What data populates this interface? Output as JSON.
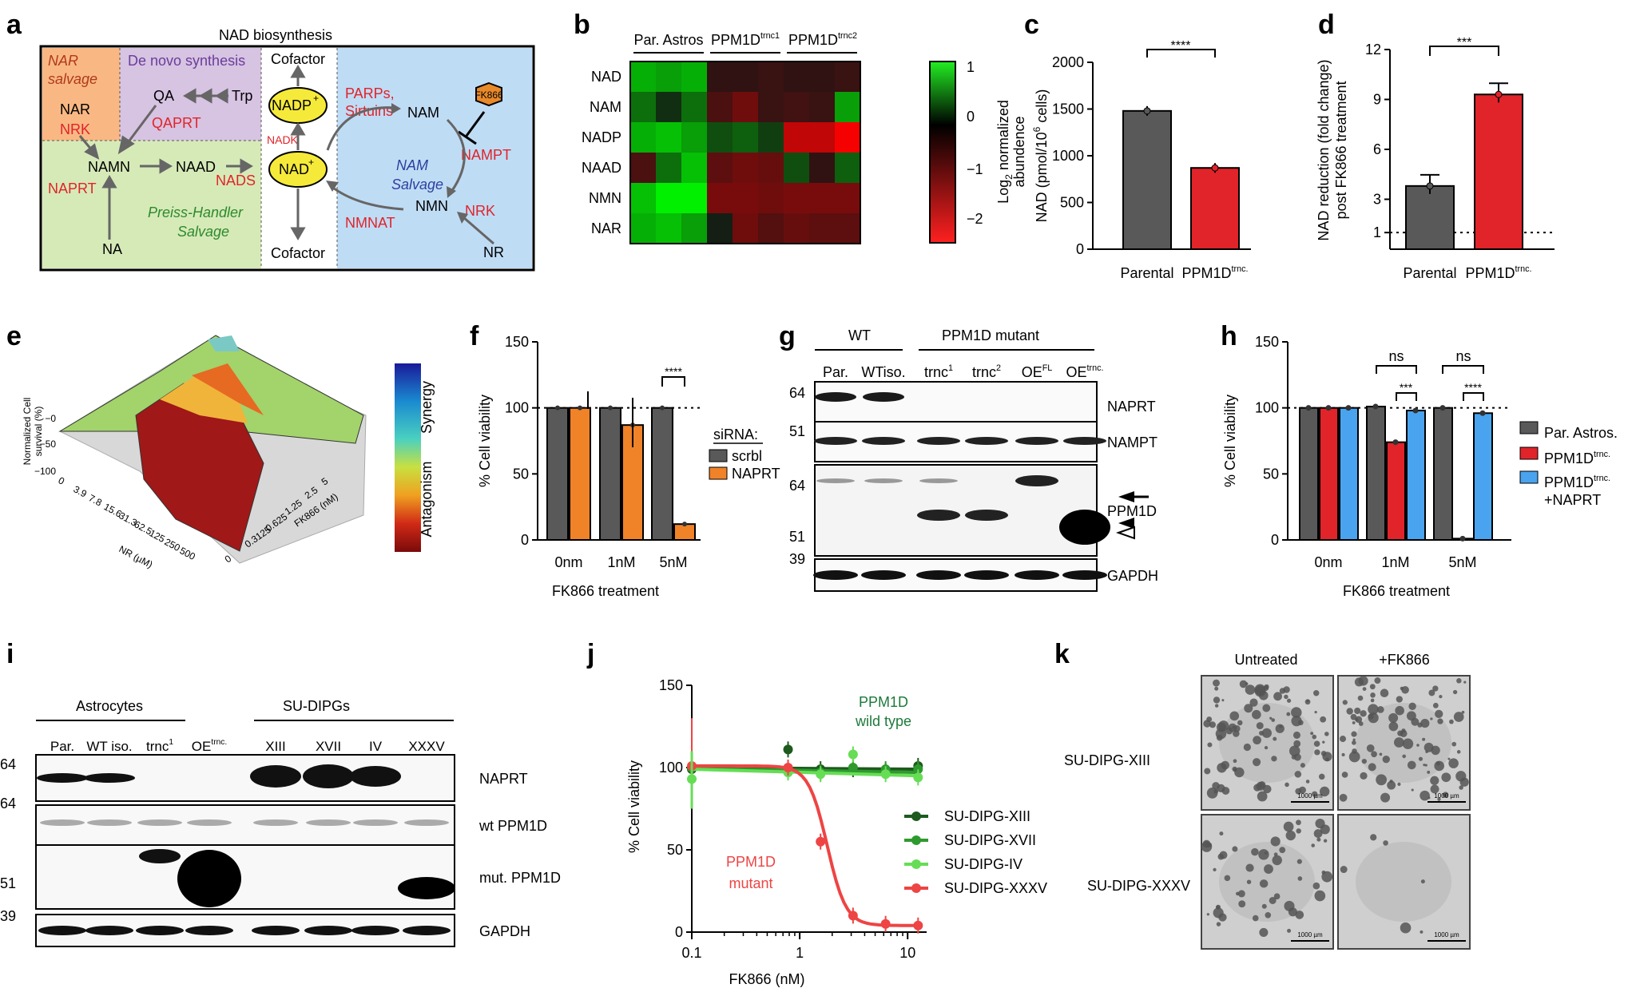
{
  "panels": {
    "a": {
      "label": "a",
      "title": "NAD biosynthesis",
      "nar_salvage": [
        "NAR",
        "salvage"
      ],
      "de_novo": "De novo synthesis",
      "nam_salvage": [
        "NAM",
        "Salvage"
      ],
      "preiss": [
        "Preiss-Handler",
        "Salvage"
      ],
      "nodes": {
        "nar": "NAR",
        "nrk1": "NRK",
        "qa": "QA",
        "trp": "Trp",
        "qaprt": "QAPRT",
        "namn": "NAMN",
        "naad": "NAAD",
        "nads": "NADS",
        "naprt": "NAPRT",
        "na": "NA",
        "nadp": "NADP",
        "nadp_sup": "+",
        "nad": "NAD",
        "nad_sup": "+",
        "nadk": "NADK",
        "cofactor_top": "Cofactor",
        "cofactor_bottom": "Cofactor",
        "parps": [
          "PARPs,",
          "Sirtuins"
        ],
        "nam": "NAM",
        "fk866": "FK866",
        "nampt": "NAMPT",
        "nmn": "NMN",
        "nrk2": "NRK",
        "nmnat": "NMNAT",
        "nr": "NR"
      }
    },
    "b": {
      "label": "b",
      "groups": [
        "Par. Astros",
        "PPM1D",
        "PPM1D"
      ],
      "group_sup": [
        "",
        "trnc1",
        "trnc2"
      ],
      "rows": [
        "NAD",
        "NAM",
        "NADP",
        "NAAD",
        "NMN",
        "NAR"
      ],
      "colorbar_ticks": [
        "1",
        "0",
        "−1",
        "−2"
      ],
      "colorbar_label_a": "Log",
      "colorbar_label_sub": "2",
      "colorbar_label_b": " normalized",
      "colorbar_label_c": "abundence",
      "cells": [
        [
          0.9,
          0.8,
          0.9,
          -0.2,
          -0.2,
          -0.3,
          -0.2,
          -0.2,
          -0.3
        ],
        [
          0.5,
          0.1,
          0.5,
          -0.5,
          -0.9,
          -0.3,
          -0.4,
          -0.3,
          0.8
        ],
        [
          0.9,
          1.0,
          0.8,
          0.3,
          0.4,
          0.2,
          -1.8,
          -1.8,
          -2.4
        ],
        [
          -0.5,
          0.5,
          1.0,
          -0.7,
          -0.9,
          -0.8,
          0.3,
          -0.2,
          0.4
        ],
        [
          1.0,
          1.3,
          1.6,
          -1.0,
          -1.0,
          -0.9,
          -1.0,
          -1.0,
          -1.0
        ],
        [
          0.9,
          1.0,
          0.8,
          0.0,
          -0.9,
          -0.6,
          -0.8,
          -0.7,
          -0.7
        ]
      ]
    },
    "c": {
      "label": "c",
      "ylabel_a": "NAD (pmol/10",
      "ylabel_sup": "6",
      "ylabel_b": " cells)",
      "yticks": [
        "0",
        "500",
        "1000",
        "1500",
        "2000"
      ],
      "categories": [
        "Parental",
        "PPM1D"
      ],
      "cat_sup": [
        "",
        "trnc."
      ],
      "values": [
        1480,
        870
      ],
      "sig": "****"
    },
    "d": {
      "label": "d",
      "ylabel_a": "NAD reduction (fold change)",
      "ylabel_b": "post FK866 treatment",
      "yticks": [
        "1",
        "3",
        "6",
        "9",
        "12"
      ],
      "categories": [
        "Parental",
        "PPM1D"
      ],
      "cat_sup": [
        "",
        "trnc."
      ],
      "values": [
        3.8,
        9.3
      ],
      "sig": "***"
    },
    "e": {
      "label": "e",
      "zlabel_a": "Normalized Cell",
      "zlabel_b": "survival (%)",
      "zticks": [
        "−0",
        "−50",
        "−100"
      ],
      "nr_ticks": [
        "0",
        "3.9",
        "7.8",
        "15.6",
        "31.3",
        "62.5",
        "125",
        "250",
        "500"
      ],
      "nr_label": "NR (µM)",
      "fk_ticks": [
        "0",
        "0.3125",
        "0.625",
        "1.25",
        "2.5",
        "5"
      ],
      "fk_label": "FK866 (nM)",
      "colorbar_top": "Synergy",
      "colorbar_bottom": "Antagonism"
    },
    "f": {
      "label": "f",
      "ylabel": "% Cell viability",
      "xlabel": "FK866 treatment",
      "yticks": [
        "0",
        "50",
        "100",
        "150"
      ],
      "groups": [
        "0nm",
        "1nM",
        "5nM"
      ],
      "legend_title": "siRNA:",
      "legend": [
        "scrbl",
        "NAPRT"
      ],
      "values_scrbl": [
        100,
        100,
        100
      ],
      "values_naprt": [
        100,
        87,
        12
      ],
      "sig": "****"
    },
    "g": {
      "label": "g",
      "wt": "WT",
      "mut": "PPM1D mutant",
      "lanes": [
        "Par.",
        "WTiso.",
        "trnc",
        "trnc",
        "OE",
        "OE"
      ],
      "lane_sup": [
        "",
        "",
        "1",
        "2",
        "FL",
        "trnc."
      ],
      "mw": [
        "64",
        "51",
        "64",
        "51",
        "39"
      ],
      "blots": [
        "NAPRT",
        "NAMPT",
        "PPM1D",
        "GAPDH"
      ]
    },
    "h": {
      "label": "h",
      "ylabel": "% Cell viability",
      "xlabel": "FK866 treatment",
      "yticks": [
        "0",
        "50",
        "100",
        "150"
      ],
      "groups": [
        "0nm",
        "1nM",
        "5nM"
      ],
      "legend": [
        "Par. Astros.",
        "PPM1D",
        "PPM1D",
        "+NAPRT"
      ],
      "legend_sup": [
        "",
        "trnc.",
        "trnc.",
        ""
      ],
      "values_par": [
        100,
        101,
        100
      ],
      "values_ppm": [
        100,
        74,
        1
      ],
      "values_naprt": [
        100,
        98,
        96
      ],
      "ns": [
        "ns",
        "ns"
      ],
      "sig": [
        "***",
        "****"
      ]
    },
    "i": {
      "label": "i",
      "astro": "Astrocytes",
      "dipg": "SU-DIPGs",
      "lanes": [
        "Par.",
        "WT iso.",
        "trnc",
        "OE",
        "XIII",
        "XVII",
        "IV",
        "XXXV"
      ],
      "lane_sup": [
        "",
        "",
        "1",
        "trnc.",
        "",
        "",
        "",
        ""
      ],
      "mw": [
        "64",
        "64",
        "51",
        "39"
      ],
      "blots": [
        "NAPRT",
        "wt PPM1D",
        "mut. PPM1D",
        "GAPDH"
      ]
    },
    "j": {
      "label": "j",
      "ylabel": "% Cell viability",
      "xlabel": "FK866 (nM)",
      "yticks": [
        "0",
        "50",
        "100",
        "150"
      ],
      "xticks": [
        "0.1",
        "1",
        "10"
      ],
      "wt_label": [
        "PPM1D",
        "wild type"
      ],
      "mut_label": [
        "PPM1D",
        "mutant"
      ],
      "legend": [
        "SU-DIPG-XIII",
        "SU-DIPG-XVII",
        "SU-DIPG-IV",
        "SU-DIPG-XXXV"
      ],
      "colors": [
        "#1d5a1d",
        "#2e9a2e",
        "#66dd55",
        "#ee4444"
      ]
    },
    "k": {
      "label": "k",
      "cols": [
        "Untreated",
        "+FK866"
      ],
      "rows": [
        "SU-DIPG-XIII",
        "SU-DIPG-XXXV"
      ],
      "scale": "1000 µm"
    }
  },
  "chart_data": [
    {
      "type": "heatmap",
      "panel": "b",
      "rows": [
        "NAD",
        "NAM",
        "NADP",
        "NAAD",
        "NMN",
        "NAR"
      ],
      "columns_groups": [
        "Par. Astros",
        "PPM1D trnc1",
        "PPM1D trnc2"
      ],
      "range": [
        -2.5,
        1.3
      ]
    },
    {
      "type": "bar",
      "panel": "c",
      "categories": [
        "Parental",
        "PPM1D trnc."
      ],
      "values": [
        1480,
        870
      ],
      "ylim": [
        0,
        2000
      ],
      "ylabel": "NAD (pmol/10^6 cells)"
    },
    {
      "type": "bar",
      "panel": "d",
      "categories": [
        "Parental",
        "PPM1D trnc."
      ],
      "values": [
        3.8,
        9.3
      ],
      "ylim": [
        0,
        12
      ],
      "ylabel": "NAD reduction (fold change) post FK866 treatment"
    },
    {
      "type": "bar",
      "panel": "f",
      "categories": [
        "0nm",
        "1nM",
        "5nM"
      ],
      "series": [
        {
          "name": "scrbl",
          "values": [
            100,
            100,
            100
          ]
        },
        {
          "name": "NAPRT",
          "values": [
            100,
            87,
            12
          ]
        }
      ],
      "ylim": [
        0,
        150
      ]
    },
    {
      "type": "bar",
      "panel": "h",
      "categories": [
        "0nm",
        "1nM",
        "5nM"
      ],
      "series": [
        {
          "name": "Par. Astros.",
          "values": [
            100,
            101,
            100
          ]
        },
        {
          "name": "PPM1D trnc.",
          "values": [
            100,
            74,
            1
          ]
        },
        {
          "name": "PPM1D trnc. +NAPRT",
          "values": [
            100,
            98,
            96
          ]
        }
      ],
      "ylim": [
        0,
        150
      ]
    },
    {
      "type": "line",
      "panel": "j",
      "xlabel": "FK866 (nM)",
      "ylabel": "% Cell viability",
      "ylim": [
        0,
        150
      ],
      "xscale": "log",
      "x": [
        0.1,
        0.78,
        1.56,
        3.12,
        6.25,
        12.5
      ],
      "series": [
        {
          "name": "SU-DIPG-XIII",
          "values": [
            99,
            111,
            99,
            99,
            98,
            101
          ]
        },
        {
          "name": "SU-DIPG-XVII",
          "values": [
            100,
            98,
            97,
            100,
            99,
            99
          ]
        },
        {
          "name": "SU-DIPG-IV",
          "values": [
            93,
            97,
            96,
            108,
            96,
            94
          ]
        },
        {
          "name": "SU-DIPG-XXXV",
          "values": [
            101,
            100,
            55,
            10,
            5,
            4
          ]
        }
      ]
    }
  ]
}
